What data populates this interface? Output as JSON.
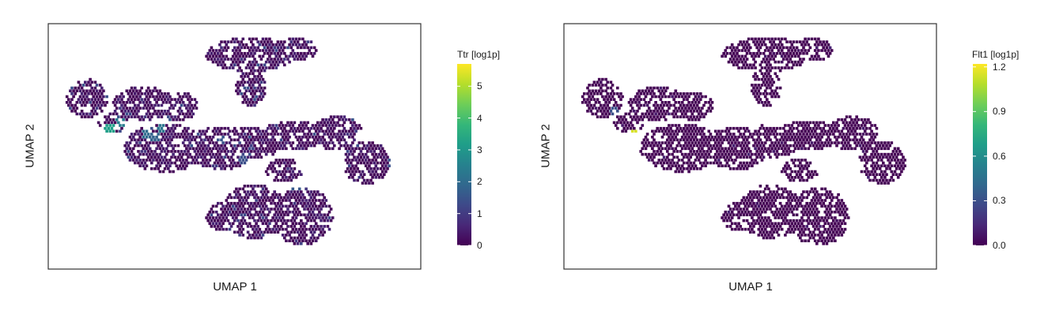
{
  "chart_data": [
    {
      "type": "heatmap",
      "subtype": "umap-hexbin",
      "xlabel": "UMAP 1",
      "ylabel": "UMAP 2",
      "colorbar": {
        "title": "Ttr [log1p]",
        "colormap": "viridis",
        "range": [
          0,
          5.7
        ],
        "ticks": [
          0,
          1,
          2,
          3,
          4,
          5
        ],
        "tick_labels": [
          "0",
          "1",
          "2",
          "3",
          "4",
          "5"
        ]
      },
      "highlights": [
        {
          "u": 0.16,
          "v": 0.42,
          "value": 3.2
        },
        {
          "u": 0.19,
          "v": 0.4,
          "value": 2.4
        },
        {
          "u": 0.26,
          "v": 0.44,
          "value": 2.0
        },
        {
          "u": 0.28,
          "v": 0.46,
          "value": 1.8
        },
        {
          "u": 0.3,
          "v": 0.42,
          "value": 2.2
        },
        {
          "u": 0.38,
          "v": 0.79,
          "value": 2.1
        },
        {
          "u": 0.46,
          "v": 0.47,
          "value": 1.5
        },
        {
          "u": 0.52,
          "v": 0.55,
          "value": 1.4
        },
        {
          "u": 0.66,
          "v": 0.66,
          "value": 1.6
        },
        {
          "u": 0.71,
          "v": 0.58,
          "value": 1.3
        }
      ]
    },
    {
      "type": "heatmap",
      "subtype": "umap-hexbin",
      "xlabel": "UMAP 1",
      "ylabel": "UMAP 2",
      "colorbar": {
        "title": "Flt1 [log1p]",
        "colormap": "viridis",
        "range": [
          0,
          1.22
        ],
        "ticks": [
          0.0,
          0.3,
          0.6,
          0.9,
          1.2
        ],
        "tick_labels": [
          "0.0",
          "0.3",
          "0.6",
          "0.9",
          "1.2"
        ]
      },
      "highlights": [
        {
          "u": 0.18,
          "v": 0.44,
          "value": 0.45
        },
        {
          "u": 0.19,
          "v": 0.45,
          "value": 1.15
        },
        {
          "u": 0.13,
          "v": 0.35,
          "value": 0.3
        }
      ]
    }
  ],
  "colors": {
    "viridis": [
      "#440154",
      "#482878",
      "#3e4989",
      "#31688e",
      "#26828e",
      "#1f9e89",
      "#35b779",
      "#6ece58",
      "#b5de2b",
      "#fde725"
    ],
    "background": "#ffffff",
    "frame": "#333333"
  }
}
